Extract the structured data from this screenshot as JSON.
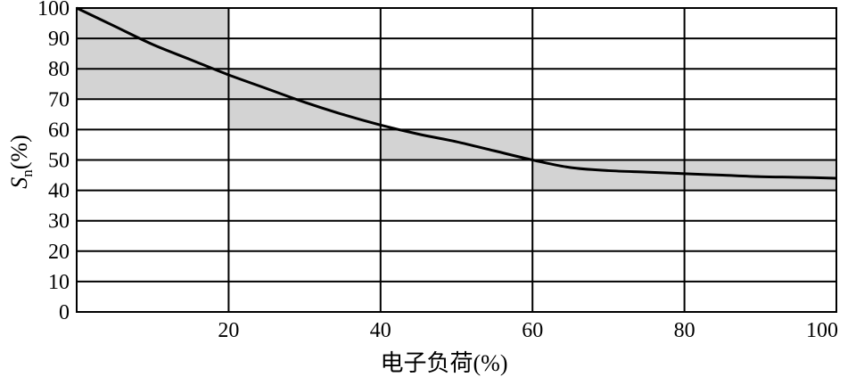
{
  "chart_data": {
    "type": "line",
    "title": "",
    "xlabel": "电子负荷(%)",
    "ylabel": {
      "main": "S",
      "subscript": "n",
      "suffix": "(%)"
    },
    "xlim": [
      0,
      100
    ],
    "ylim": [
      0,
      100
    ],
    "x_ticks": [
      20,
      40,
      60,
      80,
      100
    ],
    "x_tick_labels": [
      "20",
      "40",
      "60",
      "80",
      "100"
    ],
    "y_ticks": [
      0,
      10,
      20,
      30,
      40,
      50,
      60,
      70,
      80,
      90,
      100
    ],
    "y_tick_labels": [
      "0",
      "10",
      "20",
      "30",
      "40",
      "50",
      "60",
      "70",
      "80",
      "90",
      "100"
    ],
    "grid": true,
    "series": [
      {
        "x": [
          0,
          5,
          10,
          15,
          20,
          25,
          30,
          35,
          40,
          45,
          50,
          55,
          60,
          65,
          70,
          75,
          80,
          85,
          90,
          95,
          100
        ],
        "values": [
          100,
          94,
          88,
          83,
          78,
          73.5,
          69,
          65,
          61.5,
          58.5,
          56,
          53,
          50,
          47.5,
          46.5,
          46,
          45.5,
          45,
          44.5,
          44.3,
          44
        ],
        "color": "#000000"
      }
    ],
    "shaded_bands": [
      {
        "x": [
          0,
          20
        ],
        "y": [
          70,
          100
        ]
      },
      {
        "x": [
          20,
          40
        ],
        "y": [
          60,
          80
        ]
      },
      {
        "x": [
          40,
          60
        ],
        "y": [
          50,
          60
        ]
      },
      {
        "x": [
          60,
          100
        ],
        "y": [
          40,
          50
        ]
      }
    ],
    "colors": {
      "band": "#d3d3d3",
      "grid": "#000000",
      "line": "#000000"
    }
  }
}
